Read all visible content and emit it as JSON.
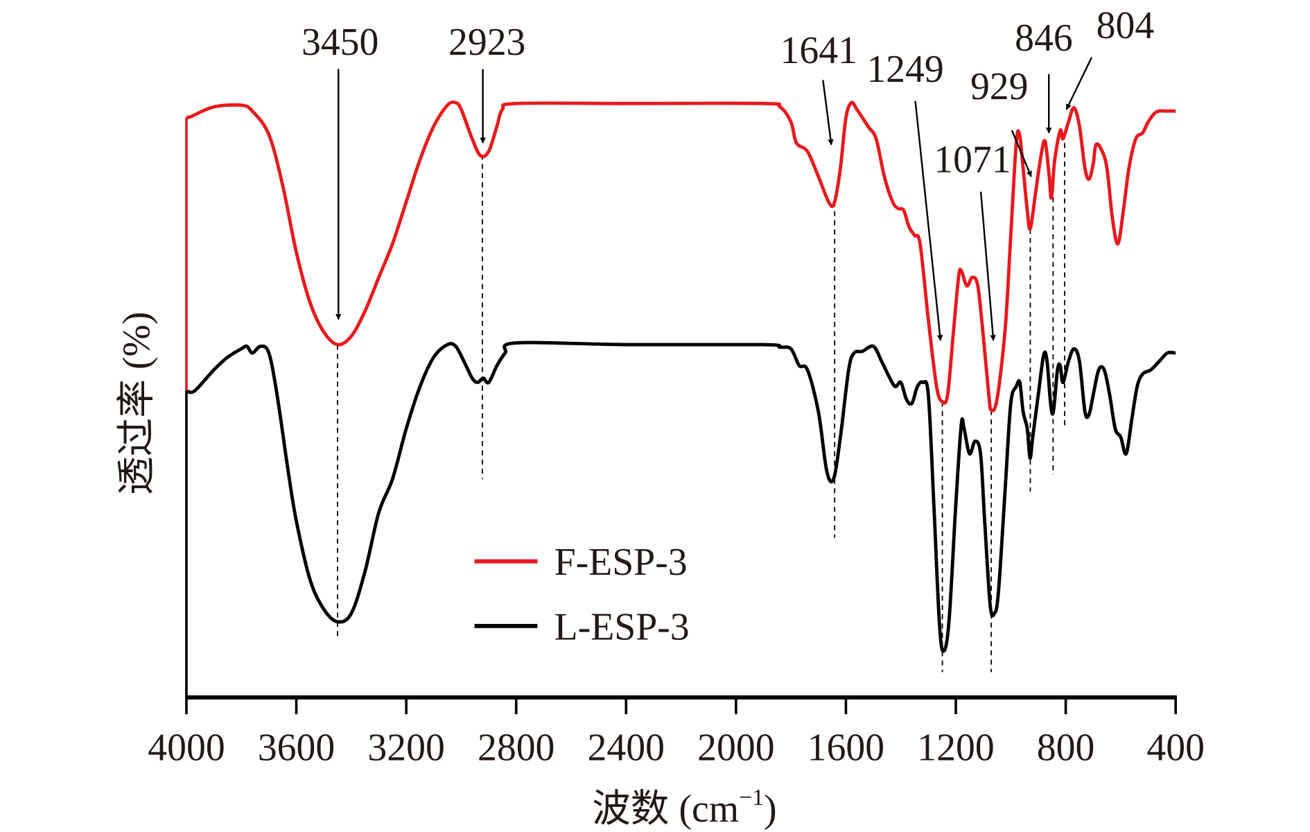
{
  "chart_data": {
    "type": "line",
    "title": "",
    "xlabel": "波数 (cm⁻¹)",
    "xlabel_main": "波数 (cm",
    "xlabel_sup": "−1",
    "xlabel_close": ")",
    "ylabel": "透过率 (%)",
    "xlim": [
      4000,
      400
    ],
    "x_reversed": true,
    "ylim": [
      0,
      73
    ],
    "y_ticks_shown": false,
    "grid": false,
    "legend_position": "center-left",
    "x_ticks": [
      4000,
      3600,
      3200,
      2800,
      2400,
      2000,
      1600,
      1200,
      800,
      400
    ],
    "x_tick_labels": [
      "4000",
      "3600",
      "3200",
      "2800",
      "2400",
      "2000",
      "1600",
      "1200",
      "800",
      "400"
    ],
    "series": [
      {
        "name": "F-ESP-3",
        "color": "#e8191d",
        "points": [
          [
            4000,
            69
          ],
          [
            3980,
            69.2
          ],
          [
            3900,
            70.3
          ],
          [
            3800,
            70.5
          ],
          [
            3760,
            69.8
          ],
          [
            3700,
            67
          ],
          [
            3650,
            61
          ],
          [
            3600,
            53
          ],
          [
            3550,
            47
          ],
          [
            3500,
            43.5
          ],
          [
            3450,
            42
          ],
          [
            3400,
            43
          ],
          [
            3350,
            46
          ],
          [
            3300,
            50
          ],
          [
            3250,
            54
          ],
          [
            3200,
            59
          ],
          [
            3150,
            64
          ],
          [
            3100,
            68
          ],
          [
            3050,
            70.5
          ],
          [
            3020,
            70.8
          ],
          [
            3000,
            70
          ],
          [
            2960,
            66.5
          ],
          [
            2930,
            64.5
          ],
          [
            2900,
            65
          ],
          [
            2870,
            68
          ],
          [
            2850,
            70
          ],
          [
            2800,
            70.7
          ],
          [
            2400,
            70.7
          ],
          [
            1900,
            70.7
          ],
          [
            1840,
            70.3
          ],
          [
            1800,
            68.5
          ],
          [
            1780,
            66
          ],
          [
            1740,
            65
          ],
          [
            1700,
            62
          ],
          [
            1660,
            58.8
          ],
          [
            1641,
            59
          ],
          [
            1620,
            63
          ],
          [
            1600,
            69
          ],
          [
            1580,
            70.8
          ],
          [
            1560,
            70
          ],
          [
            1520,
            68
          ],
          [
            1490,
            66.5
          ],
          [
            1460,
            62
          ],
          [
            1430,
            59
          ],
          [
            1410,
            58.2
          ],
          [
            1390,
            58
          ],
          [
            1370,
            56
          ],
          [
            1350,
            55
          ],
          [
            1330,
            54
          ],
          [
            1300,
            45
          ],
          [
            1270,
            37
          ],
          [
            1249,
            35.2
          ],
          [
            1230,
            36
          ],
          [
            1210,
            43
          ],
          [
            1190,
            50
          ],
          [
            1180,
            50.8
          ],
          [
            1160,
            49
          ],
          [
            1140,
            50
          ],
          [
            1120,
            49
          ],
          [
            1100,
            43
          ],
          [
            1080,
            36
          ],
          [
            1071,
            34.2
          ],
          [
            1050,
            35.5
          ],
          [
            1020,
            44
          ],
          [
            1000,
            55
          ],
          [
            980,
            66
          ],
          [
            968,
            67
          ],
          [
            955,
            63
          ],
          [
            940,
            58
          ],
          [
            929,
            55.8
          ],
          [
            910,
            60
          ],
          [
            890,
            64.5
          ],
          [
            875,
            66.2
          ],
          [
            860,
            62
          ],
          [
            852,
            59.5
          ],
          [
            840,
            64
          ],
          [
            820,
            67.5
          ],
          [
            810,
            66.5
          ],
          [
            790,
            68.5
          ],
          [
            770,
            70.2
          ],
          [
            750,
            68
          ],
          [
            730,
            63
          ],
          [
            715,
            61.7
          ],
          [
            700,
            63.5
          ],
          [
            690,
            65.8
          ],
          [
            670,
            65.2
          ],
          [
            650,
            63
          ],
          [
            630,
            57
          ],
          [
            610,
            54
          ],
          [
            590,
            58
          ],
          [
            570,
            63
          ],
          [
            545,
            66.5
          ],
          [
            520,
            67.2
          ],
          [
            500,
            68.5
          ],
          [
            470,
            69.7
          ],
          [
            430,
            69.8
          ],
          [
            400,
            69.8
          ]
        ]
      },
      {
        "name": "L-ESP-3",
        "color": "#000000",
        "points": [
          [
            4000,
            36.5
          ],
          [
            3970,
            36.5
          ],
          [
            3900,
            39
          ],
          [
            3850,
            40.5
          ],
          [
            3800,
            41.5
          ],
          [
            3780,
            41.8
          ],
          [
            3760,
            41
          ],
          [
            3730,
            41.8
          ],
          [
            3700,
            41
          ],
          [
            3670,
            36
          ],
          [
            3630,
            27
          ],
          [
            3600,
            21
          ],
          [
            3550,
            14
          ],
          [
            3500,
            10.5
          ],
          [
            3450,
            9
          ],
          [
            3400,
            10
          ],
          [
            3350,
            15
          ],
          [
            3300,
            22
          ],
          [
            3250,
            26
          ],
          [
            3200,
            32
          ],
          [
            3150,
            37
          ],
          [
            3100,
            40.5
          ],
          [
            3050,
            42
          ],
          [
            3020,
            41.8
          ],
          [
            2990,
            40
          ],
          [
            2960,
            38
          ],
          [
            2940,
            37.5
          ],
          [
            2920,
            38
          ],
          [
            2900,
            37.5
          ],
          [
            2870,
            39.5
          ],
          [
            2840,
            41
          ],
          [
            2800,
            42.2
          ],
          [
            2400,
            42
          ],
          [
            1900,
            42
          ],
          [
            1840,
            41.7
          ],
          [
            1800,
            41.5
          ],
          [
            1770,
            39.5
          ],
          [
            1740,
            39
          ],
          [
            1700,
            34
          ],
          [
            1670,
            27
          ],
          [
            1645,
            26
          ],
          [
            1620,
            31
          ],
          [
            1590,
            39
          ],
          [
            1570,
            41
          ],
          [
            1540,
            41.2
          ],
          [
            1500,
            41.8
          ],
          [
            1470,
            40
          ],
          [
            1440,
            38
          ],
          [
            1420,
            37
          ],
          [
            1400,
            37.5
          ],
          [
            1380,
            35.5
          ],
          [
            1360,
            35
          ],
          [
            1340,
            37
          ],
          [
            1320,
            37.5
          ],
          [
            1300,
            36
          ],
          [
            1280,
            23
          ],
          [
            1260,
            9
          ],
          [
            1245,
            5.5
          ],
          [
            1225,
            9
          ],
          [
            1200,
            23
          ],
          [
            1180,
            32.5
          ],
          [
            1170,
            32
          ],
          [
            1150,
            29
          ],
          [
            1130,
            30.5
          ],
          [
            1110,
            29
          ],
          [
            1095,
            21
          ],
          [
            1075,
            11
          ],
          [
            1060,
            10
          ],
          [
            1045,
            12.5
          ],
          [
            1020,
            25
          ],
          [
            1000,
            35
          ],
          [
            980,
            37
          ],
          [
            967,
            37.5
          ],
          [
            955,
            34
          ],
          [
            940,
            32
          ],
          [
            930,
            28.5
          ],
          [
            920,
            31
          ],
          [
            900,
            36
          ],
          [
            880,
            40.8
          ],
          [
            868,
            40
          ],
          [
            855,
            35
          ],
          [
            845,
            34
          ],
          [
            830,
            39
          ],
          [
            820,
            39.5
          ],
          [
            810,
            37.5
          ],
          [
            790,
            40
          ],
          [
            770,
            41.5
          ],
          [
            750,
            40
          ],
          [
            730,
            34
          ],
          [
            715,
            33.7
          ],
          [
            700,
            36
          ],
          [
            680,
            39
          ],
          [
            660,
            39
          ],
          [
            640,
            36
          ],
          [
            620,
            32
          ],
          [
            600,
            31
          ],
          [
            580,
            29
          ],
          [
            560,
            33
          ],
          [
            540,
            37
          ],
          [
            520,
            38.5
          ],
          [
            490,
            39
          ],
          [
            460,
            40
          ],
          [
            430,
            41
          ],
          [
            400,
            41
          ]
        ]
      }
    ],
    "annotations": [
      {
        "label": "3450",
        "x": 3450
      },
      {
        "label": "2923",
        "x": 2923
      },
      {
        "label": "1641",
        "x": 1641
      },
      {
        "label": "1249",
        "x": 1249
      },
      {
        "label": "1071",
        "x": 1071
      },
      {
        "label": "929",
        "x": 929
      },
      {
        "label": "846",
        "x": 846
      },
      {
        "label": "804",
        "x": 804
      }
    ]
  }
}
